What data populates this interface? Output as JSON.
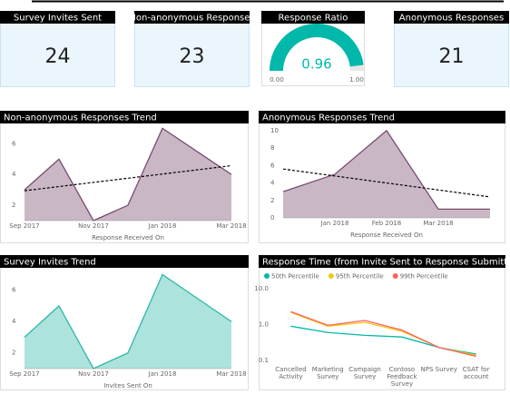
{
  "cards": [
    {
      "title": "Survey Invites Sent",
      "value": 24
    },
    {
      "title": "Non-anonymous Responses",
      "value": 23
    },
    {
      "title": "Anonymous Responses",
      "value": 21
    }
  ],
  "chart_data": [
    {
      "type": "gauge",
      "title": "Response Ratio",
      "value": 0.96,
      "min": {
        "value": 0,
        "label": "0.00"
      },
      "max": {
        "value": 1,
        "label": "1.00"
      },
      "color": "#01B8AA"
    },
    {
      "type": "area",
      "title": "Non-anonymous Responses Trend",
      "x_label": "Response Received On",
      "x": [
        "2017-09",
        "2017-10",
        "2017-11",
        "2017-12",
        "2018-01",
        "2018-03"
      ],
      "values": [
        3,
        5,
        1,
        2,
        7,
        4
      ],
      "xlim": [
        "2017-09",
        "2018-03"
      ],
      "xticks": [
        {
          "value": "2017-09",
          "label": "Sep 2017"
        },
        {
          "value": "2017-11",
          "label": "Nov 2017"
        },
        {
          "value": "2018-01",
          "label": "Jan 2018"
        },
        {
          "value": "2018-03",
          "label": "Mar 2018"
        }
      ],
      "ylim": [
        1,
        7.2
      ],
      "yticks": [
        2,
        4,
        6
      ],
      "color": "#7a4b70",
      "trendline": true
    },
    {
      "type": "area",
      "title": "Anonymous Responses Trend",
      "x_label": "Response Received On",
      "x": [
        "2017-12",
        "2018-01",
        "2018-02",
        "2018-03",
        "2018-04"
      ],
      "values": [
        3,
        5,
        10,
        1,
        1
      ],
      "xlim": [
        "2017-12",
        "2018-04"
      ],
      "xticks": [
        {
          "value": "2018-01",
          "label": "Jan 2018"
        },
        {
          "value": "2018-02",
          "label": "Feb 2018"
        },
        {
          "value": "2018-03",
          "label": "Mar 2018"
        }
      ],
      "ylim": [
        0,
        10.3
      ],
      "yticks": [
        0,
        2,
        4,
        6,
        8,
        10
      ],
      "color": "#7a4b70",
      "trendline": true
    },
    {
      "type": "area",
      "title": "Survey Invites Trend",
      "x_label": "Invites Sent On",
      "x": [
        "2017-09",
        "2017-10",
        "2017-11",
        "2017-12",
        "2018-01",
        "2018-03"
      ],
      "values": [
        3,
        5,
        1,
        2,
        7,
        4
      ],
      "xlim": [
        "2017-09",
        "2018-03"
      ],
      "xticks": [
        {
          "value": "2017-09",
          "label": "Sep 2017"
        },
        {
          "value": "2017-11",
          "label": "Nov 2017"
        },
        {
          "value": "2018-01",
          "label": "Jan 2018"
        },
        {
          "value": "2018-03",
          "label": "Mar 2018"
        }
      ],
      "ylim": [
        1,
        7.2
      ],
      "yticks": [
        2,
        4,
        6
      ],
      "color": "#2fb8a8",
      "trendline": false
    },
    {
      "type": "line",
      "title": "Response Time (from Invite Sent to Response Submitted)",
      "categories": [
        "Cancelled Activity",
        "Marketing Survey",
        "Campaign Survey",
        "Contoso Feedback Survey",
        "NPS Survey",
        "CSAT for account"
      ],
      "series": [
        {
          "name": "50th Percentile",
          "color": "#01B8AA",
          "values": [
            0.9,
            0.6,
            0.5,
            0.45,
            0.23,
            0.15
          ]
        },
        {
          "name": "95th Percentile",
          "color": "#F2C80F",
          "values": [
            2.2,
            0.9,
            1.15,
            0.65,
            0.23,
            0.14
          ]
        },
        {
          "name": "99th Percentile",
          "color": "#FD625E",
          "values": [
            2.3,
            0.95,
            1.3,
            0.7,
            0.23,
            0.13
          ]
        }
      ],
      "ylim": [
        0.1,
        10
      ],
      "yticks": [
        0.1,
        {
          "value": 1,
          "label": "1.0"
        },
        {
          "value": 10,
          "label": "10.0"
        }
      ],
      "log_scale": true,
      "legend": "top-left"
    }
  ]
}
